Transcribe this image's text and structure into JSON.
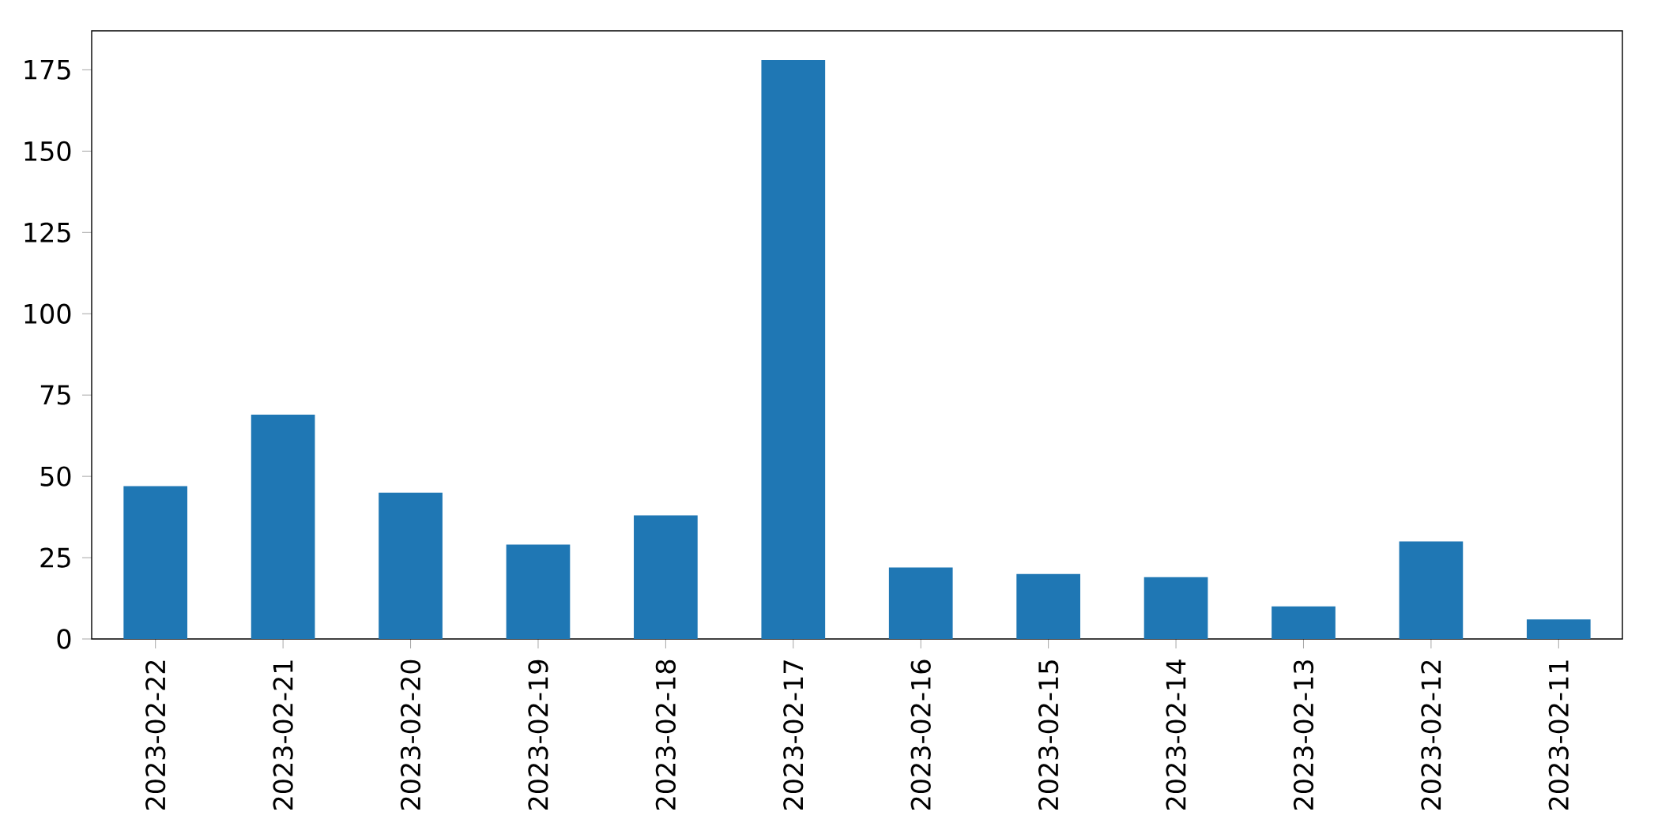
{
  "chart_data": {
    "type": "bar",
    "categories": [
      "2023-02-22",
      "2023-02-21",
      "2023-02-20",
      "2023-02-19",
      "2023-02-18",
      "2023-02-17",
      "2023-02-16",
      "2023-02-15",
      "2023-02-14",
      "2023-02-13",
      "2023-02-12",
      "2023-02-11"
    ],
    "values": [
      47,
      69,
      45,
      29,
      38,
      178,
      22,
      20,
      19,
      10,
      30,
      6
    ],
    "color": "#1f77b4",
    "ylim": [
      0,
      187
    ],
    "yticks": [
      0,
      25,
      50,
      75,
      100,
      125,
      150,
      175
    ],
    "grid": false
  }
}
